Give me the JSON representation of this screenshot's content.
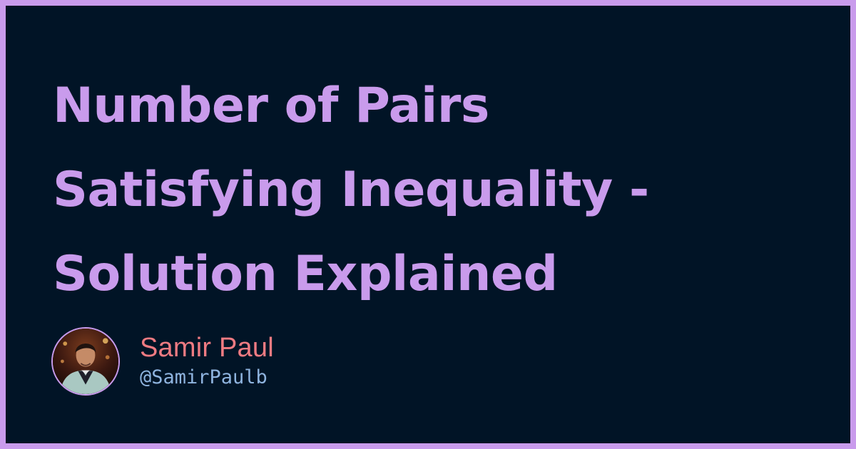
{
  "article": {
    "title_lines": [
      "Number of Pairs",
      "Satisfying Inequality -",
      "Solution Explained"
    ]
  },
  "author": {
    "name": "Samir Paul",
    "handle": "@SamirPaulb",
    "avatar_icon": "author-photo"
  },
  "colors": {
    "border": "#c99bec",
    "background": "#011426",
    "title": "#c99bec",
    "author_name": "#f07b82",
    "author_handle": "#8fb4df"
  }
}
